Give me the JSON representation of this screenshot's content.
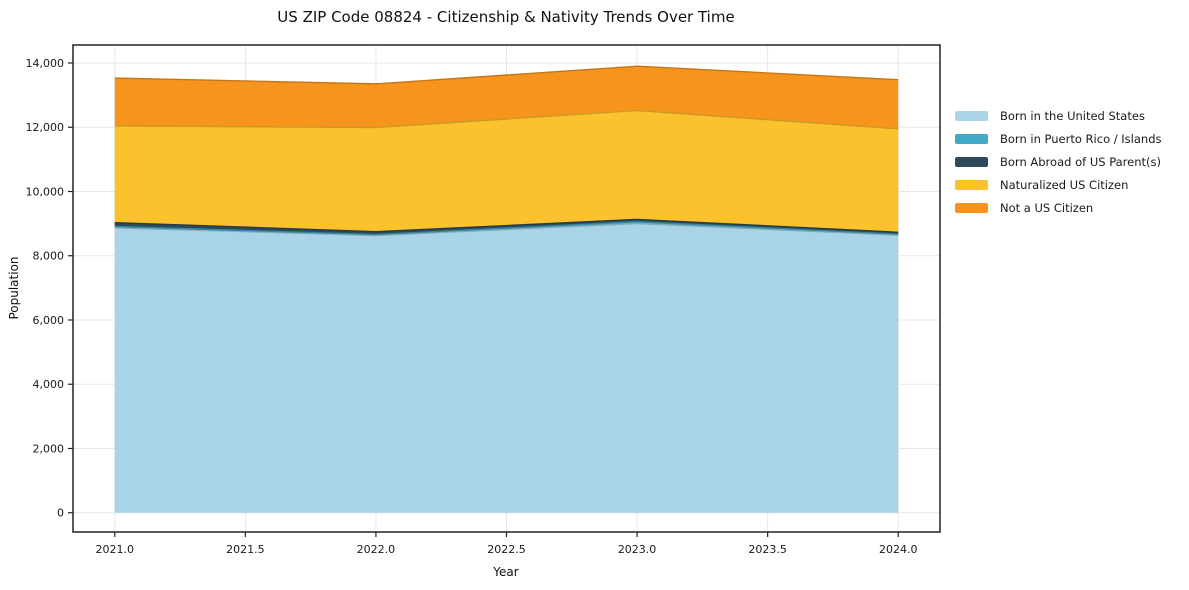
{
  "figure": {
    "title": "US ZIP Code 08824 - Citizenship & Nativity Trends Over Time",
    "xlabel": "Year",
    "ylabel": "Population"
  },
  "chart_data": {
    "type": "area",
    "stacked": true,
    "title": "US ZIP Code 08824 - Citizenship & Nativity Trends Over Time",
    "xlabel": "Year",
    "ylabel": "Population",
    "x": [
      2021,
      2022,
      2023,
      2024
    ],
    "series": [
      {
        "name": "Born in the United States",
        "color": "#A9D4E8",
        "values": [
          8870,
          8630,
          9000,
          8640
        ]
      },
      {
        "name": "Born in Puerto Rico / Islands",
        "color": "#41A9C8",
        "values": [
          40,
          30,
          60,
          30
        ]
      },
      {
        "name": "Born Abroad of US Parent(s)",
        "color": "#2E4A5A",
        "values": [
          120,
          90,
          70,
          60
        ]
      },
      {
        "name": "Naturalized US Citizen",
        "color": "#FCC22D",
        "values": [
          3010,
          3240,
          3390,
          3220
        ]
      },
      {
        "name": "Not a US Citizen",
        "color": "#F7941E",
        "values": [
          1490,
          1360,
          1380,
          1530
        ]
      }
    ],
    "stack_totals": [
      13530,
      13350,
      13900,
      13480
    ],
    "x_tick_values": [
      2021.0,
      2021.5,
      2022.0,
      2022.5,
      2023.0,
      2023.5,
      2024.0
    ],
    "x_tick_labels": [
      "2021.0",
      "2021.5",
      "2022.0",
      "2022.5",
      "2023.0",
      "2023.5",
      "2024.0"
    ],
    "y_tick_values": [
      0,
      2000,
      4000,
      6000,
      8000,
      10000,
      12000,
      14000
    ],
    "y_tick_labels": [
      "0",
      "2,000",
      "4,000",
      "6,000",
      "8,000",
      "10,000",
      "12,000",
      "14,000"
    ],
    "xlim": [
      2020.84,
      2024.16
    ],
    "ylim": [
      -600,
      14560
    ],
    "grid": true,
    "grid_color": "#e7e7e7",
    "spine_color": "#222222",
    "legend_position": "right-outside"
  }
}
